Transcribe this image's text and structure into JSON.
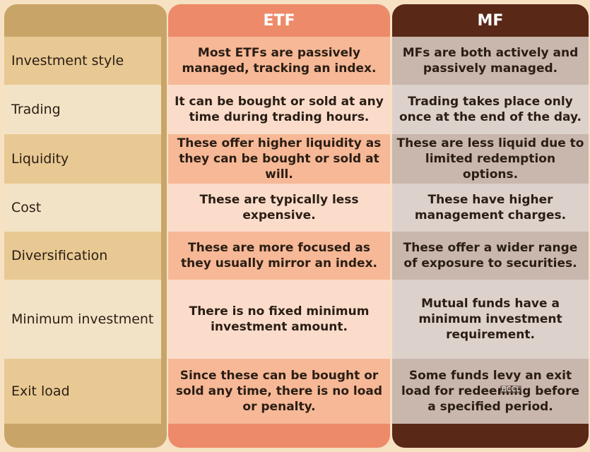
{
  "headers": {
    "etf": "ETF",
    "mf": "MF"
  },
  "rows": [
    {
      "label": "Investment style",
      "etf": "Most ETFs are passively managed, tracking an index.",
      "mf": "MFs are both actively and passively managed."
    },
    {
      "label": "Trading",
      "etf": "It can be bought or sold at any time during trading hours.",
      "mf": "Trading takes place only once at the end of the day."
    },
    {
      "label": "Liquidity",
      "etf": "These offer higher liquidity as they can be bought or sold at will.",
      "mf": "These are less liquid due to limited redemption options."
    },
    {
      "label": "Cost",
      "etf": "These are typically less expensive.",
      "mf": "These have higher management charges."
    },
    {
      "label": "Diversification",
      "etf": "These are more focused as they usually mirror an index.",
      "mf": "These offer a wider range of exposure to securities."
    },
    {
      "label": "Minimum investment",
      "etf": "There is no fixed minimum investment amount.",
      "mf": "Mutual funds have a minimum investment requirement."
    },
    {
      "label": "Exit load",
      "etf": "Since these can be bought or sold any time, there is no load or penalty.",
      "mf": "Some funds levy an exit load for redeeming before a specified period."
    }
  ],
  "watermark": "BCCL",
  "colors": {
    "etf_header": "#ed8a6a",
    "mf_header": "#5a2817",
    "label_column": "#c9a468"
  }
}
